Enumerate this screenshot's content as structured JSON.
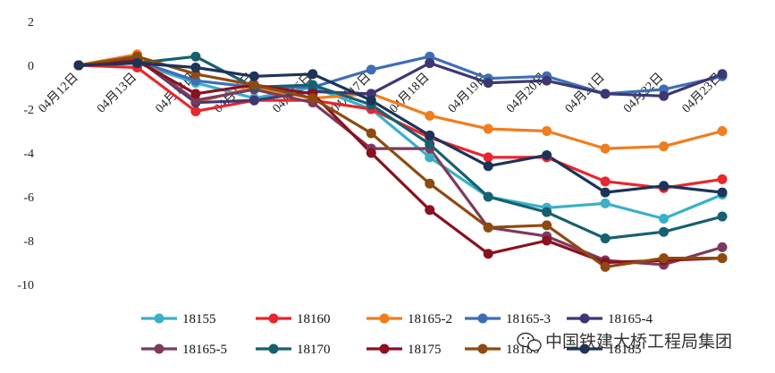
{
  "chart_data": {
    "type": "line",
    "x": [
      "04月12日",
      "04月13日",
      "04月14日",
      "04月15日",
      "04月16日",
      "04月17日",
      "04月18日",
      "04月19日",
      "04月20日",
      "04月21日",
      "04月22日",
      "04月23日"
    ],
    "ylim": [
      -10,
      2
    ],
    "yticks": [
      "2",
      "0",
      "-2",
      "-4",
      "-6",
      "-8",
      "-10"
    ],
    "grid": false,
    "legend_position": "bottom",
    "series": [
      {
        "name": "18155",
        "color": "#3ab0c8",
        "values": [
          0,
          0.1,
          -0.8,
          -1.5,
          -1.0,
          -2.0,
          -4.2,
          -6.0,
          -6.5,
          -6.3,
          -7.0,
          -5.9
        ]
      },
      {
        "name": "18160",
        "color": "#e8262d",
        "values": [
          0,
          -0.1,
          -2.1,
          -1.6,
          -1.6,
          -2.0,
          -3.3,
          -4.2,
          -4.2,
          -5.3,
          -5.6,
          -5.2
        ]
      },
      {
        "name": "18165-2",
        "color": "#f07d1e",
        "values": [
          0,
          0.5,
          -1.7,
          -1.0,
          -1.5,
          -1.3,
          -2.3,
          -2.9,
          -3.0,
          -3.8,
          -3.7,
          -3.0
        ]
      },
      {
        "name": "18165-3",
        "color": "#3f6eb5",
        "values": [
          0,
          0.2,
          -0.7,
          -1.0,
          -1.0,
          -0.2,
          0.4,
          -0.6,
          -0.5,
          -1.3,
          -1.1,
          -0.5
        ]
      },
      {
        "name": "18165-4",
        "color": "#3d3873",
        "values": [
          0,
          0.3,
          -1.7,
          -1.6,
          -1.2,
          -1.3,
          0.1,
          -0.8,
          -0.7,
          -1.3,
          -1.4,
          -0.4
        ]
      },
      {
        "name": "18165-5",
        "color": "#7d3a5c",
        "values": [
          0,
          0.3,
          -1.6,
          -1.1,
          -1.7,
          -3.8,
          -3.8,
          -7.4,
          -7.8,
          -8.9,
          -9.1,
          -8.3
        ]
      },
      {
        "name": "18170",
        "color": "#166070",
        "values": [
          0,
          0.1,
          0.4,
          -1.0,
          -0.9,
          -1.8,
          -3.6,
          -6.0,
          -6.7,
          -7.9,
          -7.6,
          -6.9
        ]
      },
      {
        "name": "18175",
        "color": "#8b1020",
        "values": [
          0,
          0.2,
          -1.3,
          -0.9,
          -1.3,
          -4.0,
          -6.6,
          -8.6,
          -8.0,
          -9.0,
          -8.9,
          -8.8
        ]
      },
      {
        "name": "18180",
        "color": "#8e4a10",
        "values": [
          0,
          0.4,
          -0.4,
          -0.9,
          -1.5,
          -3.1,
          -5.4,
          -7.4,
          -7.3,
          -9.2,
          -8.8,
          -8.8
        ]
      },
      {
        "name": "18185",
        "color": "#1d3358",
        "values": [
          0,
          0.1,
          -0.1,
          -0.5,
          -0.4,
          -1.6,
          -3.2,
          -4.6,
          -4.1,
          -5.8,
          -5.5,
          -5.8
        ]
      }
    ]
  },
  "watermark": {
    "text": "中国铁建大桥工程局集团"
  }
}
